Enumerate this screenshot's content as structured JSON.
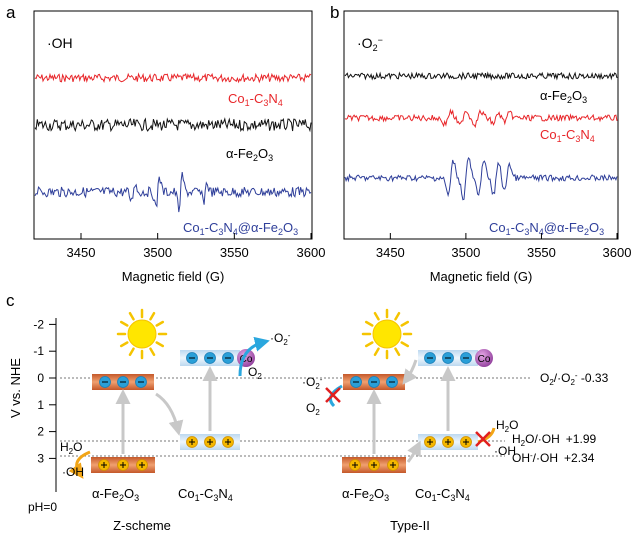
{
  "panel_a": {
    "letter": "a",
    "species_label": "·OH",
    "series": [
      {
        "name": "Co1-C3N4",
        "label_main": "Co",
        "label_parts": [
          "1",
          "-C",
          "3",
          "N",
          "4"
        ],
        "color": "#e8262a"
      },
      {
        "name": "α-Fe2O3",
        "color": "#111111"
      },
      {
        "name": "Co1-C3N4@α-Fe2O3",
        "color": "#2f3f9a"
      }
    ],
    "xlabel": "Magnetic field (G)",
    "ticks": [
      "3450",
      "3500",
      "3550",
      "3600"
    ]
  },
  "panel_b": {
    "letter": "b",
    "species_label": "·O2−",
    "xlabel": "Magnetic field (G)",
    "ticks": [
      "3450",
      "3500",
      "3550",
      "3600"
    ]
  },
  "panel_c": {
    "letter": "c",
    "ylabel": "V vs. NHE",
    "yticks": [
      "-2",
      "-1",
      "0",
      "1",
      "2",
      "3"
    ],
    "ph_label": "pH=0",
    "z_scheme_title": "Z-scheme",
    "type2_title": "Type-II",
    "fe2o3_label": "α-Fe2O3",
    "c3n4_label": "Co1-C3N4",
    "co_label": "Co",
    "h2o": "H2O",
    "oh": "·OH",
    "o2": "O2",
    "o2_radical": "·O2-",
    "couple_o2": "O2/·O2-",
    "couple_o2_value": "-0.33",
    "couple_h2o": "H2O/·OH",
    "couple_h2o_value": "+1.99",
    "couple_oh": "OH-/·OH",
    "couple_oh_value": "+2.34"
  },
  "chart_data": [
    {
      "type": "line",
      "title": "",
      "xlabel": "Magnetic field (G)",
      "ylabel": "",
      "xlim": [
        3420,
        3600
      ],
      "x_ticks": [
        3450,
        3500,
        3550,
        3600
      ],
      "series": [
        {
          "name": "Co1-C3N4",
          "shape": "noise"
        },
        {
          "name": "α-Fe2O3",
          "shape": "noise"
        },
        {
          "name": "Co1-C3N4@α-Fe2O3",
          "shape": "DMPO-OH quartet",
          "peak_fields": [
            3484,
            3500,
            3515,
            3531
          ]
        }
      ]
    },
    {
      "type": "line",
      "title": "",
      "xlabel": "Magnetic field (G)",
      "ylabel": "",
      "xlim": [
        3420,
        3600
      ],
      "x_ticks": [
        3450,
        3500,
        3550,
        3600
      ],
      "series": [
        {
          "name": "α-Fe2O3",
          "shape": "noise"
        },
        {
          "name": "Co1-C3N4",
          "shape": "DMPO-O2 sextet, weak"
        },
        {
          "name": "Co1-C3N4@α-Fe2O3",
          "shape": "DMPO-O2 sextet, strong",
          "peak_fields": [
            3490,
            3500,
            3510,
            3520,
            3527
          ]
        }
      ]
    }
  ]
}
